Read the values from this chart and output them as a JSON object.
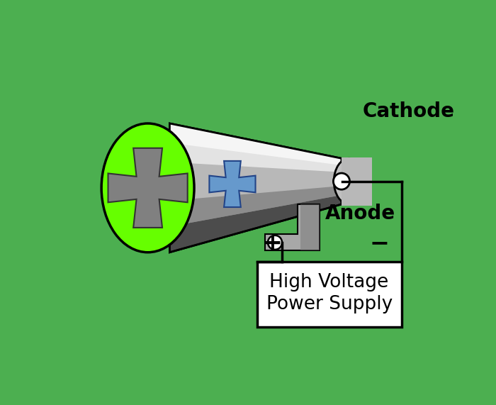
{
  "bg_color": "#4CAF50",
  "green_circle_color": "#66FF00",
  "cross_shadow_color": "#808080",
  "cross_blue_color": "#6699CC",
  "cathode_label": "Cathode",
  "anode_label": "Anode",
  "power_label_line1": "High Voltage",
  "power_label_line2": "Power Supply",
  "plus_label": "+",
  "minus_label": "−",
  "box_fill": "#FFFFFF",
  "line_color": "#000000",
  "label_fontsize": 18,
  "tube_top_color": "#E8E8E8",
  "tube_mid_color": "#B0B0B0",
  "tube_dark_color": "#404040",
  "tube_mid2_color": "#888888"
}
